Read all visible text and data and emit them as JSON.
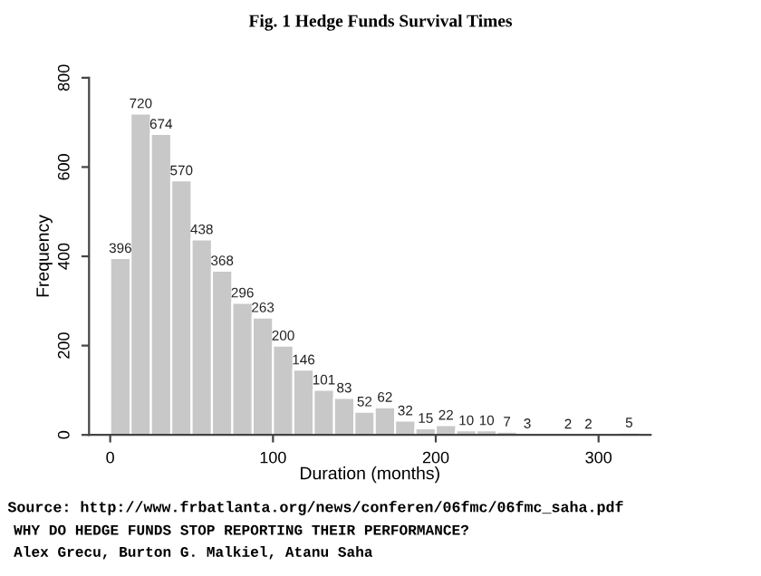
{
  "chart_data": {
    "type": "histogram",
    "title": "Fig. 1 Hedge Funds Survival Times",
    "xlabel": "Duration (months)",
    "ylabel": "Frequency",
    "bins": [
      0,
      12.5,
      25,
      37.5,
      50,
      62.5,
      75,
      87.5,
      100,
      112.5,
      125,
      137.5,
      150,
      162.5,
      175,
      187.5,
      200,
      212.5,
      225,
      237.5,
      250,
      262.5,
      275,
      287.5,
      300,
      312.5,
      325
    ],
    "values": [
      396,
      720,
      674,
      570,
      438,
      368,
      296,
      263,
      200,
      146,
      101,
      83,
      52,
      62,
      32,
      15,
      22,
      10,
      10,
      7,
      3,
      0,
      2,
      2,
      0,
      5
    ],
    "value_labels": [
      "396",
      "720",
      "674",
      "570",
      "438",
      "368",
      "296",
      "263",
      "200",
      "146",
      "101",
      "83",
      "52",
      "62",
      "32",
      "15",
      "22",
      "10",
      "10",
      "7",
      "3",
      null,
      "2",
      "2",
      null,
      "5"
    ],
    "color": "#c8c8c8",
    "xlim": [
      -13,
      332
    ],
    "ylim": [
      0,
      800
    ],
    "xticks": [
      0,
      100,
      200,
      300
    ],
    "yticks": [
      0,
      200,
      400,
      600,
      800
    ],
    "grid": false,
    "legend": false,
    "annotations": [
      "Source: http://www.frbatlanta.org/news/conferen/06fmc/06fmc_saha.pdf",
      "WHY DO HEDGE FUNDS STOP REPORTING THEIR PERFORMANCE?",
      "Alex Grecu, Burton G. Malkiel, Atanu Saha"
    ]
  }
}
